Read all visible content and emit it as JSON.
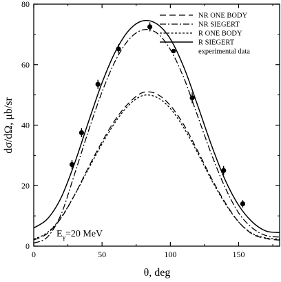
{
  "chart_data": {
    "type": "line",
    "title": "",
    "xlabel": "θ, deg",
    "ylabel": "dσ/dΩ, μb/sr",
    "xlim": [
      0,
      180
    ],
    "ylim": [
      0,
      80
    ],
    "xticks": [
      0,
      50,
      100,
      150
    ],
    "yticks": [
      0,
      20,
      40,
      60,
      80
    ],
    "grid": false,
    "legend_position": "top-right",
    "annotation": {
      "text": "E",
      "subscript": "γ",
      "suffix": "=20 MeV"
    },
    "series": [
      {
        "name": "NR ONE BODY",
        "style": "dashed",
        "x": [
          0,
          10,
          20,
          30,
          40,
          50,
          60,
          70,
          80,
          90,
          100,
          110,
          120,
          130,
          140,
          150,
          160,
          170,
          180
        ],
        "y": [
          2.0,
          4.2,
          9.3,
          17.0,
          26.0,
          34.5,
          42.0,
          47.5,
          50.8,
          50.3,
          46.5,
          40.0,
          31.5,
          22.5,
          14.5,
          8.0,
          4.0,
          2.5,
          2.0
        ]
      },
      {
        "name": "NR SIEGERT",
        "style": "dashdot",
        "x": [
          0,
          10,
          20,
          30,
          40,
          50,
          60,
          70,
          80,
          90,
          100,
          110,
          120,
          130,
          140,
          150,
          160,
          170,
          180
        ],
        "y": [
          1.0,
          3.0,
          10.5,
          24.0,
          38.0,
          51.0,
          61.5,
          68.5,
          71.5,
          70.5,
          65.0,
          55.5,
          43.0,
          30.5,
          19.5,
          11.0,
          6.0,
          3.5,
          3.0
        ]
      },
      {
        "name": "R ONE BODY",
        "style": "dotted",
        "x": [
          0,
          10,
          20,
          30,
          40,
          50,
          60,
          70,
          80,
          90,
          100,
          110,
          120,
          130,
          140,
          150,
          160,
          170,
          180
        ],
        "y": [
          2.3,
          4.5,
          9.5,
          17.0,
          25.5,
          33.8,
          41.2,
          46.8,
          49.8,
          49.2,
          45.5,
          39.0,
          30.8,
          22.0,
          14.2,
          8.0,
          4.2,
          2.7,
          2.3
        ]
      },
      {
        "name": "R SIEGERT",
        "style": "solid",
        "x": [
          0,
          10,
          20,
          30,
          40,
          50,
          60,
          70,
          80,
          90,
          100,
          110,
          120,
          130,
          140,
          150,
          160,
          170,
          180
        ],
        "y": [
          6.0,
          9.0,
          16.0,
          27.5,
          41.0,
          54.0,
          64.5,
          71.5,
          74.5,
          73.5,
          68.5,
          59.0,
          46.5,
          33.5,
          22.0,
          13.5,
          8.0,
          5.0,
          4.5
        ]
      },
      {
        "name": "experimental data",
        "style": "markers",
        "x": [
          28,
          35,
          47,
          62,
          85,
          116,
          139,
          153
        ],
        "y": [
          27.0,
          37.5,
          53.5,
          65.2,
          72.5,
          49.0,
          25.0,
          14.0
        ],
        "yerr": [
          1.5,
          1.5,
          1.5,
          1.5,
          1.5,
          1.8,
          1.5,
          1.2
        ]
      }
    ]
  }
}
